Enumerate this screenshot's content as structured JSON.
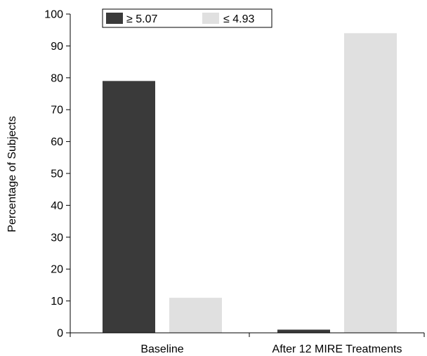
{
  "chart_data": {
    "type": "bar",
    "title": "",
    "xlabel": "",
    "ylabel": "Percentage of Subjects",
    "categories": [
      "Baseline",
      "After 12 MIRE Treatments"
    ],
    "series": [
      {
        "name": "≥ 5.07",
        "values": [
          79,
          1
        ],
        "color": "#3a3a3a"
      },
      {
        "name": "≤ 4.93",
        "values": [
          11,
          94
        ],
        "color": "#e0e0e0"
      }
    ],
    "ylim": [
      0,
      100
    ],
    "yticks": [
      "0",
      "10",
      "20",
      "30",
      "40",
      "50",
      "60",
      "70",
      "80",
      "90",
      "100"
    ],
    "grid": false,
    "legend_position": "top-left"
  }
}
